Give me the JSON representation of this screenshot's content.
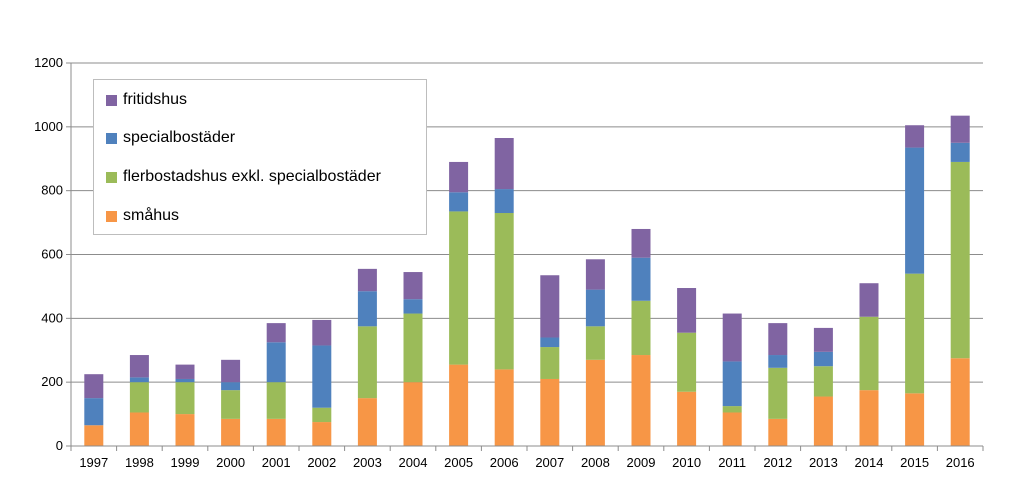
{
  "chart_data": {
    "type": "bar",
    "stacked": true,
    "categories": [
      "1997",
      "1998",
      "1999",
      "2000",
      "2001",
      "2002",
      "2003",
      "2004",
      "2005",
      "2006",
      "2007",
      "2008",
      "2009",
      "2010",
      "2011",
      "2012",
      "2013",
      "2014",
      "2015",
      "2016"
    ],
    "series": [
      {
        "name": "småhus",
        "color": "#f79646",
        "values": [
          65,
          105,
          100,
          85,
          85,
          75,
          150,
          200,
          255,
          240,
          210,
          270,
          285,
          170,
          105,
          85,
          155,
          175,
          165,
          275
        ]
      },
      {
        "name": "flerbostadshus exkl. specialbostäder",
        "color": "#9bbb59",
        "values": [
          0,
          95,
          100,
          90,
          115,
          45,
          225,
          215,
          480,
          490,
          100,
          105,
          170,
          185,
          20,
          160,
          95,
          230,
          375,
          615
        ]
      },
      {
        "name": "specialbostäder",
        "color": "#4f81bd",
        "values": [
          85,
          15,
          10,
          25,
          125,
          195,
          110,
          45,
          60,
          75,
          30,
          115,
          135,
          0,
          140,
          40,
          45,
          0,
          395,
          60
        ]
      },
      {
        "name": "fritidshus",
        "color": "#8064a2",
        "values": [
          75,
          70,
          45,
          70,
          60,
          80,
          70,
          85,
          95,
          160,
          195,
          95,
          90,
          140,
          150,
          100,
          75,
          105,
          70,
          85
        ]
      }
    ],
    "legend_order": [
      "fritidshus",
      "specialbostäder",
      "flerbostadshus exkl. specialbostäder",
      "småhus"
    ],
    "ylim": [
      0,
      1200
    ],
    "yticks": [
      "0",
      "200",
      "400",
      "600",
      "800",
      "1000",
      "1200"
    ],
    "grid": true,
    "legend_position": "top-left",
    "title": "",
    "xlabel": "",
    "ylabel": ""
  }
}
